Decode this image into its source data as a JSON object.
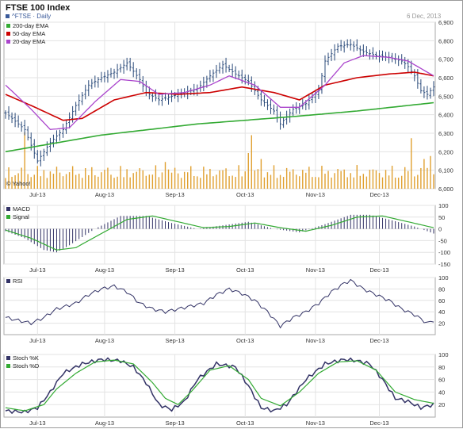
{
  "header": {
    "title": "FTSE 100 Index",
    "symbol": "^FTSE · Daily",
    "date": "6 Dec, 2013",
    "symbol_color": "#3a5a9a"
  },
  "chart_data": [
    {
      "type": "ohlc",
      "panel": "price",
      "legend": [
        "200-day EMA",
        "50-day EMA",
        "20-day EMA"
      ],
      "legend_colors": [
        "#33aa33",
        "#cc0000",
        "#aa44cc"
      ],
      "watermark": "© Yahoo!",
      "yticks": [
        "6,000",
        "6,100",
        "6,200",
        "6,300",
        "6,400",
        "6,500",
        "6,600",
        "6,700",
        "6,800",
        "6,900"
      ],
      "ylim": [
        6000,
        6900
      ],
      "xticks": [
        "Jul-13",
        "Aug-13",
        "Sep-13",
        "Oct-13",
        "Nov-13",
        "Dec-13"
      ],
      "close_anchors": [
        [
          0,
          6410
        ],
        [
          6,
          6320
        ],
        [
          10,
          6150
        ],
        [
          14,
          6250
        ],
        [
          18,
          6320
        ],
        [
          22,
          6450
        ],
        [
          26,
          6560
        ],
        [
          30,
          6600
        ],
        [
          34,
          6630
        ],
        [
          38,
          6680
        ],
        [
          42,
          6590
        ],
        [
          44,
          6520
        ],
        [
          48,
          6480
        ],
        [
          52,
          6500
        ],
        [
          56,
          6520
        ],
        [
          60,
          6540
        ],
        [
          64,
          6610
        ],
        [
          68,
          6670
        ],
        [
          72,
          6620
        ],
        [
          76,
          6580
        ],
        [
          80,
          6480
        ],
        [
          84,
          6420
        ],
        [
          86,
          6350
        ],
        [
          90,
          6430
        ],
        [
          94,
          6460
        ],
        [
          98,
          6530
        ],
        [
          100,
          6690
        ],
        [
          104,
          6770
        ],
        [
          108,
          6780
        ],
        [
          112,
          6740
        ],
        [
          116,
          6720
        ],
        [
          120,
          6710
        ],
        [
          124,
          6690
        ],
        [
          126,
          6660
        ],
        [
          128,
          6610
        ],
        [
          130,
          6530
        ],
        [
          132,
          6510
        ],
        [
          134,
          6550
        ]
      ],
      "ema200_anchors": [
        [
          0,
          6200
        ],
        [
          30,
          6290
        ],
        [
          60,
          6350
        ],
        [
          90,
          6390
        ],
        [
          110,
          6420
        ],
        [
          134,
          6465
        ]
      ],
      "ema50_anchors": [
        [
          0,
          6510
        ],
        [
          8,
          6450
        ],
        [
          18,
          6370
        ],
        [
          24,
          6380
        ],
        [
          34,
          6480
        ],
        [
          44,
          6520
        ],
        [
          54,
          6510
        ],
        [
          64,
          6520
        ],
        [
          74,
          6550
        ],
        [
          84,
          6520
        ],
        [
          92,
          6480
        ],
        [
          100,
          6560
        ],
        [
          110,
          6600
        ],
        [
          120,
          6620
        ],
        [
          128,
          6630
        ],
        [
          134,
          6610
        ]
      ],
      "ema20_anchors": [
        [
          0,
          6560
        ],
        [
          8,
          6430
        ],
        [
          14,
          6320
        ],
        [
          20,
          6330
        ],
        [
          28,
          6470
        ],
        [
          36,
          6590
        ],
        [
          42,
          6580
        ],
        [
          48,
          6510
        ],
        [
          56,
          6520
        ],
        [
          64,
          6560
        ],
        [
          70,
          6610
        ],
        [
          78,
          6560
        ],
        [
          86,
          6440
        ],
        [
          92,
          6440
        ],
        [
          100,
          6560
        ],
        [
          106,
          6680
        ],
        [
          112,
          6720
        ],
        [
          120,
          6710
        ],
        [
          126,
          6690
        ],
        [
          134,
          6610
        ]
      ],
      "volume_spikes": [
        [
          6,
          0.95
        ],
        [
          50,
          0.45
        ],
        [
          76,
          0.6
        ],
        [
          77,
          0.9
        ],
        [
          80,
          0.5
        ],
        [
          127,
          0.85
        ],
        [
          131,
          0.5
        ],
        [
          133,
          0.55
        ]
      ]
    },
    {
      "type": "macd",
      "legend": [
        "MACD",
        "Signal"
      ],
      "legend_colors": [
        "#333366",
        "#33aa33"
      ],
      "yticks": [
        "100",
        "50",
        "0",
        "-50",
        "-100",
        "-150"
      ],
      "ylim": [
        -150,
        100
      ],
      "xticks": [
        "Jul-13",
        "Aug-13",
        "Sep-13",
        "Oct-13",
        "Nov-13",
        "Dec-13"
      ],
      "macd_anchors": [
        [
          0,
          -10
        ],
        [
          6,
          -40
        ],
        [
          12,
          -90
        ],
        [
          16,
          -100
        ],
        [
          20,
          -70
        ],
        [
          28,
          0
        ],
        [
          36,
          55
        ],
        [
          44,
          55
        ],
        [
          52,
          25
        ],
        [
          60,
          0
        ],
        [
          68,
          15
        ],
        [
          76,
          30
        ],
        [
          84,
          0
        ],
        [
          92,
          -15
        ],
        [
          100,
          20
        ],
        [
          108,
          60
        ],
        [
          114,
          60
        ],
        [
          120,
          40
        ],
        [
          128,
          10
        ],
        [
          134,
          -20
        ]
      ],
      "signal_anchors": [
        [
          0,
          -5
        ],
        [
          8,
          -40
        ],
        [
          16,
          -90
        ],
        [
          22,
          -80
        ],
        [
          30,
          -20
        ],
        [
          38,
          40
        ],
        [
          46,
          55
        ],
        [
          54,
          30
        ],
        [
          62,
          5
        ],
        [
          70,
          10
        ],
        [
          78,
          25
        ],
        [
          86,
          5
        ],
        [
          94,
          -10
        ],
        [
          102,
          15
        ],
        [
          110,
          50
        ],
        [
          118,
          55
        ],
        [
          126,
          30
        ],
        [
          134,
          5
        ]
      ]
    },
    {
      "type": "rsi",
      "legend": [
        "RSI"
      ],
      "legend_colors": [
        "#333366"
      ],
      "yticks": [
        "100",
        "80",
        "60",
        "40",
        "20"
      ],
      "ylim": [
        0,
        100
      ],
      "xticks": [
        "Jul-13",
        "Aug-13",
        "Sep-13",
        "Oct-13",
        "Nov-13",
        "Dec-13"
      ],
      "rsi_anchors": [
        [
          0,
          30
        ],
        [
          4,
          25
        ],
        [
          8,
          20
        ],
        [
          12,
          30
        ],
        [
          16,
          45
        ],
        [
          22,
          55
        ],
        [
          26,
          70
        ],
        [
          30,
          80
        ],
        [
          34,
          85
        ],
        [
          38,
          75
        ],
        [
          42,
          55
        ],
        [
          46,
          45
        ],
        [
          50,
          40
        ],
        [
          54,
          45
        ],
        [
          58,
          50
        ],
        [
          62,
          55
        ],
        [
          66,
          70
        ],
        [
          70,
          80
        ],
        [
          74,
          72
        ],
        [
          78,
          60
        ],
        [
          82,
          40
        ],
        [
          86,
          15
        ],
        [
          90,
          30
        ],
        [
          94,
          40
        ],
        [
          98,
          55
        ],
        [
          102,
          75
        ],
        [
          106,
          90
        ],
        [
          108,
          95
        ],
        [
          112,
          80
        ],
        [
          116,
          70
        ],
        [
          120,
          60
        ],
        [
          124,
          45
        ],
        [
          128,
          35
        ],
        [
          132,
          20
        ],
        [
          134,
          25
        ]
      ]
    },
    {
      "type": "stochastic",
      "legend": [
        "Stoch %K",
        "Stoch %D"
      ],
      "legend_colors": [
        "#333366",
        "#33aa33"
      ],
      "yticks": [
        "100",
        "80",
        "60",
        "40",
        "20"
      ],
      "ylim": [
        0,
        100
      ],
      "xticks": [
        "Jul-13",
        "Aug-13",
        "Sep-13",
        "Oct-13",
        "Nov-13",
        "Dec-13"
      ],
      "k_anchors": [
        [
          0,
          10
        ],
        [
          6,
          8
        ],
        [
          10,
          15
        ],
        [
          14,
          40
        ],
        [
          18,
          70
        ],
        [
          24,
          85
        ],
        [
          30,
          92
        ],
        [
          36,
          90
        ],
        [
          40,
          80
        ],
        [
          44,
          55
        ],
        [
          48,
          20
        ],
        [
          52,
          12
        ],
        [
          56,
          25
        ],
        [
          60,
          60
        ],
        [
          66,
          85
        ],
        [
          72,
          80
        ],
        [
          76,
          50
        ],
        [
          80,
          15
        ],
        [
          84,
          10
        ],
        [
          88,
          20
        ],
        [
          94,
          60
        ],
        [
          100,
          85
        ],
        [
          106,
          92
        ],
        [
          110,
          90
        ],
        [
          114,
          85
        ],
        [
          118,
          60
        ],
        [
          122,
          30
        ],
        [
          126,
          25
        ],
        [
          130,
          15
        ],
        [
          134,
          20
        ]
      ],
      "d_anchors": [
        [
          0,
          15
        ],
        [
          6,
          10
        ],
        [
          12,
          20
        ],
        [
          16,
          45
        ],
        [
          22,
          70
        ],
        [
          28,
          88
        ],
        [
          34,
          91
        ],
        [
          40,
          85
        ],
        [
          46,
          55
        ],
        [
          50,
          30
        ],
        [
          54,
          20
        ],
        [
          58,
          40
        ],
        [
          64,
          75
        ],
        [
          70,
          82
        ],
        [
          76,
          60
        ],
        [
          80,
          30
        ],
        [
          86,
          18
        ],
        [
          92,
          40
        ],
        [
          98,
          70
        ],
        [
          104,
          88
        ],
        [
          110,
          90
        ],
        [
          116,
          75
        ],
        [
          122,
          40
        ],
        [
          128,
          28
        ],
        [
          134,
          22
        ]
      ]
    }
  ]
}
